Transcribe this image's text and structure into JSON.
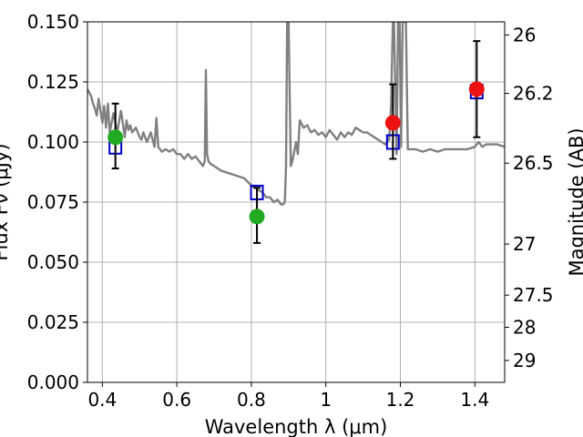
{
  "chart_data": {
    "type": "scatter",
    "title": "",
    "xlabel": "Wavelength  λ (μm)",
    "ylabel": "Flux Fν (μJy)",
    "y2label": "Magnitude (AB)",
    "xlim": [
      0.36,
      1.48
    ],
    "ylim": [
      0,
      0.15
    ],
    "grid": true,
    "legend": "none",
    "x_ticks": [
      {
        "value": 0.4,
        "label": "0.4"
      },
      {
        "value": 0.6,
        "label": "0.6"
      },
      {
        "value": 0.8,
        "label": "0.8"
      },
      {
        "value": 1.0,
        "label": "1"
      },
      {
        "value": 1.2,
        "label": "1.2"
      },
      {
        "value": 1.4,
        "label": "1.4"
      }
    ],
    "y_ticks": [
      {
        "value": 0,
        "label": "0.000"
      },
      {
        "value": 0.025,
        "label": "0.025"
      },
      {
        "value": 0.05,
        "label": "0.050"
      },
      {
        "value": 0.075,
        "label": "0.075"
      },
      {
        "value": 0.1,
        "label": "0.100"
      },
      {
        "value": 0.125,
        "label": "0.125"
      },
      {
        "value": 0.15,
        "label": "0.150"
      }
    ],
    "y2_ticks": [
      {
        "value": 26.0,
        "label": "26"
      },
      {
        "value": 26.2,
        "label": "26.2"
      },
      {
        "value": 26.5,
        "label": "26.5"
      },
      {
        "value": 27.0,
        "label": "27"
      },
      {
        "value": 27.5,
        "label": "27.5"
      },
      {
        "value": 28.0,
        "label": "28"
      },
      {
        "value": 29.0,
        "label": "29"
      }
    ],
    "series": [
      {
        "kind": "line",
        "color": "#808080",
        "x": [
          0.36,
          0.37,
          0.375,
          0.38,
          0.385,
          0.39,
          0.395,
          0.4,
          0.405,
          0.41,
          0.415,
          0.42,
          0.43,
          0.44,
          0.45,
          0.455,
          0.46,
          0.465,
          0.47,
          0.475,
          0.48,
          0.49,
          0.5,
          0.505,
          0.51,
          0.52,
          0.53,
          0.54,
          0.545,
          0.55,
          0.56,
          0.57,
          0.58,
          0.59,
          0.6,
          0.61,
          0.62,
          0.63,
          0.64,
          0.65,
          0.66,
          0.67,
          0.675,
          0.678,
          0.681,
          0.685,
          0.69,
          0.7,
          0.72,
          0.74,
          0.76,
          0.78,
          0.8,
          0.81,
          0.82,
          0.83,
          0.84,
          0.85,
          0.86,
          0.87,
          0.88,
          0.885,
          0.89,
          0.893,
          0.896,
          0.9,
          0.903,
          0.906,
          0.91,
          0.915,
          0.92,
          0.925,
          0.93,
          0.94,
          0.95,
          0.96,
          0.97,
          0.98,
          0.99,
          1.0,
          1.01,
          1.02,
          1.03,
          1.04,
          1.05,
          1.06,
          1.07,
          1.08,
          1.09,
          1.1,
          1.11,
          1.12,
          1.13,
          1.14,
          1.15,
          1.16,
          1.17,
          1.175,
          1.18,
          1.183,
          1.186,
          1.19,
          1.194,
          1.198,
          1.202,
          1.206,
          1.21,
          1.215,
          1.22,
          1.23,
          1.24,
          1.26,
          1.28,
          1.3,
          1.32,
          1.34,
          1.36,
          1.38,
          1.4,
          1.41,
          1.42,
          1.43,
          1.44,
          1.46,
          1.48
        ],
        "y": [
          0.122,
          0.119,
          0.116,
          0.114,
          0.111,
          0.118,
          0.113,
          0.108,
          0.115,
          0.106,
          0.116,
          0.104,
          0.112,
          0.104,
          0.113,
          0.108,
          0.102,
          0.109,
          0.105,
          0.107,
          0.104,
          0.106,
          0.102,
          0.101,
          0.104,
          0.1,
          0.104,
          0.098,
          0.11,
          0.098,
          0.096,
          0.097,
          0.096,
          0.097,
          0.095,
          0.095,
          0.093,
          0.095,
          0.093,
          0.094,
          0.092,
          0.09,
          0.092,
          0.13,
          0.095,
          0.092,
          0.091,
          0.09,
          0.088,
          0.087,
          0.086,
          0.085,
          0.082,
          0.081,
          0.08,
          0.079,
          0.077,
          0.077,
          0.075,
          0.076,
          0.074,
          0.074,
          0.075,
          0.09,
          0.15,
          0.15,
          0.12,
          0.09,
          0.092,
          0.096,
          0.1,
          0.095,
          0.109,
          0.106,
          0.107,
          0.104,
          0.105,
          0.103,
          0.104,
          0.102,
          0.105,
          0.103,
          0.101,
          0.104,
          0.102,
          0.104,
          0.103,
          0.106,
          0.105,
          0.104,
          0.104,
          0.103,
          0.102,
          0.101,
          0.1,
          0.099,
          0.101,
          0.115,
          0.15,
          0.15,
          0.125,
          0.095,
          0.15,
          0.15,
          0.098,
          0.15,
          0.15,
          0.15,
          0.097,
          0.097,
          0.097,
          0.096,
          0.097,
          0.096,
          0.097,
          0.097,
          0.097,
          0.097,
          0.098,
          0.1,
          0.098,
          0.099,
          0.099,
          0.099,
          0.098
        ]
      },
      {
        "kind": "squares",
        "color": "#0000cc",
        "x": [
          0.435,
          0.815,
          1.18,
          1.405
        ],
        "y": [
          0.098,
          0.079,
          0.1,
          0.121
        ]
      },
      {
        "kind": "errorbars",
        "color": "#000000",
        "x": [
          0.435,
          0.815,
          1.18,
          1.405
        ],
        "low": [
          0.089,
          0.058,
          0.093,
          0.102
        ],
        "high": [
          0.116,
          0.081,
          0.124,
          0.142
        ]
      },
      {
        "kind": "points",
        "color": "#22aa22",
        "x": [
          0.435,
          0.815
        ],
        "y": [
          0.102,
          0.069
        ]
      },
      {
        "kind": "points",
        "color": "#ee1111",
        "x": [
          1.18,
          1.405
        ],
        "y": [
          0.108,
          0.122
        ]
      }
    ]
  }
}
